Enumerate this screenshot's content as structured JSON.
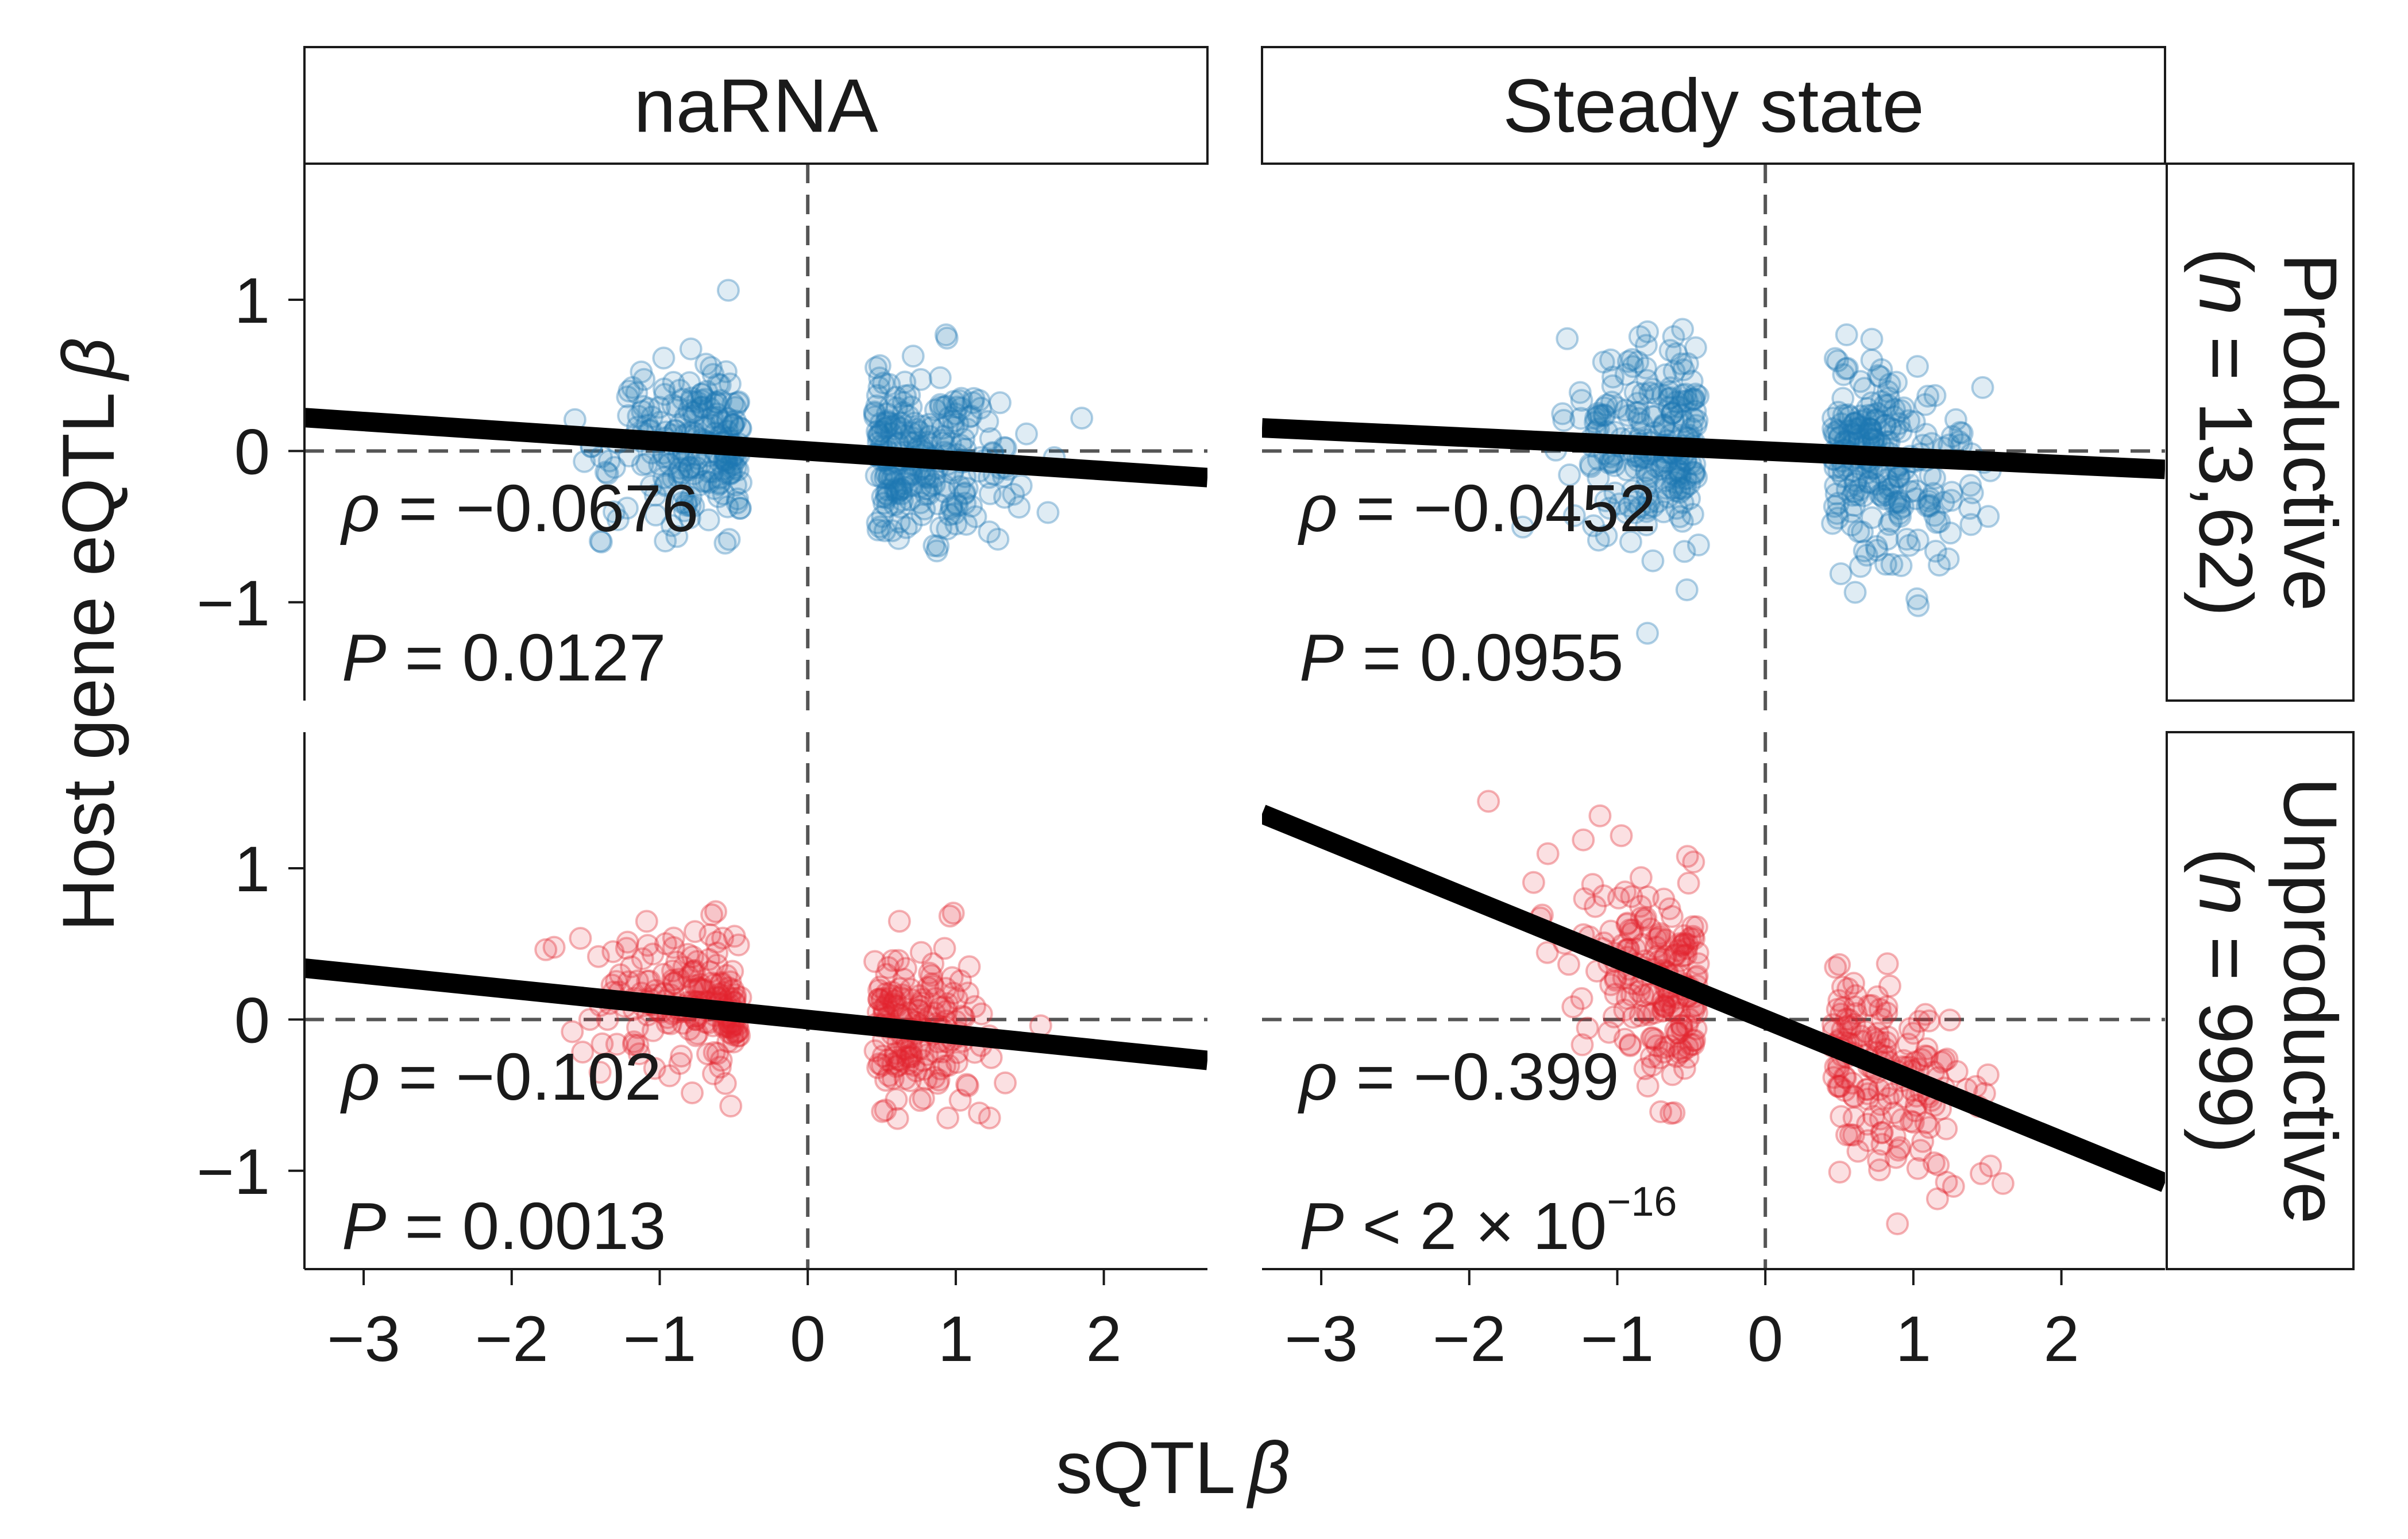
{
  "chart_data": {
    "type": "scatter",
    "xlabel": "sQTL",
    "xlabel_symbol": "β",
    "ylabel": "Host gene eQTL",
    "ylabel_symbol": "β",
    "xlim": [
      -3.4,
      2.7
    ],
    "ylim": [
      -1.65,
      1.9
    ],
    "x_ticks": [
      -3,
      -2,
      -1,
      0,
      1,
      2
    ],
    "x_tick_labels": [
      "−3",
      "−2",
      "−1",
      "0",
      "1",
      "2"
    ],
    "y_ticks": [
      1,
      0,
      -1
    ],
    "y_tick_labels": [
      "1",
      "0",
      "−1"
    ],
    "grid": false,
    "reference_lines": {
      "x": 0,
      "y": 0
    },
    "columns": [
      "naRNA",
      "Steady state"
    ],
    "rows": [
      {
        "label": "Productive",
        "n_label": "(n = 13,62)",
        "n_prefix": "(",
        "n_symbol": "n",
        "n_value": " = 13,62)",
        "color": "#1f77b4"
      },
      {
        "label": "Unproductive",
        "n_label": "(n = 999)",
        "n_prefix": "(",
        "n_symbol": "n",
        "n_value": " = 999)",
        "color": "#e3262f"
      }
    ],
    "panels": [
      {
        "column": "naRNA",
        "row": "Productive",
        "fit": {
          "slope": -0.065,
          "intercept": 0.0
        },
        "rho_label": "ρ",
        "rho_value": " = −0.0676",
        "p_label": "P",
        "p_value": " = 0.0127",
        "spread": {
          "neg_center": -0.45,
          "pos_center": 0.45,
          "sd": 0.27,
          "n_points": 460
        }
      },
      {
        "column": "Steady state",
        "row": "Productive",
        "fit": {
          "slope": -0.045,
          "intercept": 0.0
        },
        "rho_label": "ρ",
        "rho_value": " = −0.0452",
        "p_label": "P",
        "p_value": " = 0.0955",
        "spread": {
          "neg_center": -0.45,
          "pos_center": 0.45,
          "sd": 0.33,
          "n_points": 460
        }
      },
      {
        "column": "naRNA",
        "row": "Unproductive",
        "fit": {
          "slope": -0.1,
          "intercept": 0.0
        },
        "rho_label": "ρ",
        "rho_value": " = −0.102",
        "p_label": "P",
        "p_value": " = 0.0013",
        "spread": {
          "neg_center": -0.45,
          "pos_center": 0.45,
          "sd": 0.24,
          "n_points": 360
        }
      },
      {
        "column": "Steady state",
        "row": "Unproductive",
        "fit": {
          "slope": -0.4,
          "intercept": 0.0
        },
        "rho_label": "ρ",
        "rho_value": " = −0.399",
        "p_label": "P",
        "p_value": " < 2 × 10",
        "p_exponent": "−16",
        "spread": {
          "neg_center": -0.45,
          "pos_center": 0.45,
          "sd": 0.33,
          "n_points": 360
        }
      }
    ]
  }
}
